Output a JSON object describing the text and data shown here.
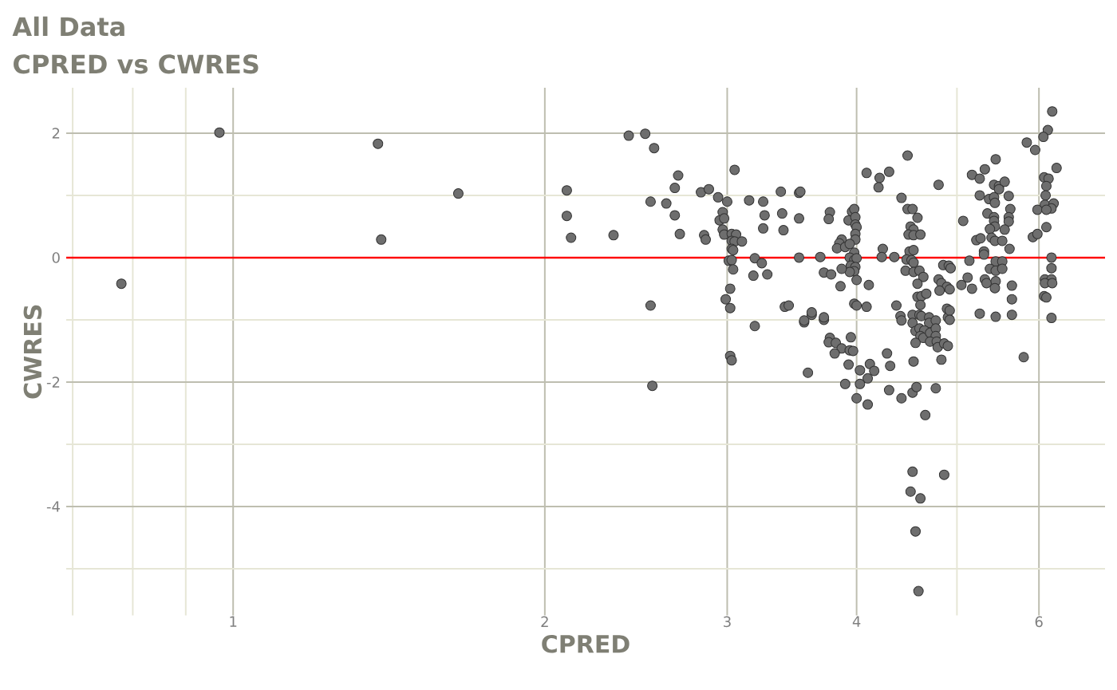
{
  "chart_data": {
    "type": "scatter",
    "title": "All Data",
    "subtitle": "CPRED vs CWRES",
    "xlabel": "CPRED",
    "ylabel": "CWRES",
    "color": "#6e6e6e",
    "marker": "circle",
    "log": "x",
    "grid": true,
    "xlim": [
      0.69,
      6.95
    ],
    "ylim": [
      -5.75,
      2.73
    ],
    "xticks": [
      {
        "value": 0.7,
        "label": null
      },
      {
        "value": 0.8,
        "label": null
      },
      {
        "value": 0.9,
        "label": null
      },
      1,
      2,
      3,
      4,
      {
        "value": 5,
        "label": null
      },
      6
    ],
    "yticks": [
      {
        "value": -5,
        "label": null
      },
      -4,
      {
        "value": -3,
        "label": null
      },
      -2,
      {
        "value": -1,
        "label": null
      },
      0,
      {
        "value": 1,
        "label": null
      },
      2
    ],
    "ref_lines": [
      {
        "axis": "y",
        "value": 0,
        "color": "#ff0000"
      }
    ],
    "x": [
      0.78,
      0.97,
      1.38,
      1.39,
      1.65,
      2.1,
      2.1,
      2.12,
      2.33,
      2.41,
      2.5,
      2.53,
      2.53,
      2.55,
      2.54,
      2.62,
      2.67,
      2.67,
      2.69,
      2.7,
      2.83,
      2.85,
      2.86,
      2.88,
      2.94,
      3.05,
      3.0,
      2.97,
      2.95,
      2.98,
      2.97,
      2.98,
      3.03,
      3.06,
      3.03,
      3.05,
      3.03,
      3.04,
      3.1,
      3.01,
      3.03,
      3.04,
      3.02,
      2.99,
      3.02,
      3.02,
      3.03,
      3.15,
      3.25,
      3.26,
      3.25,
      3.38,
      3.39,
      3.4,
      3.52,
      3.52,
      3.19,
      3.24,
      3.18,
      3.28,
      3.52,
      3.69,
      3.72,
      3.41,
      3.44,
      3.19,
      3.56,
      3.62,
      3.72,
      3.59,
      4.48,
      4.09,
      4.21,
      4.3,
      4.2,
      4.8,
      4.42,
      4.48,
      4.53,
      4.58,
      4.51,
      4.54,
      4.49,
      4.54,
      4.61,
      3.53,
      3.77,
      3.76,
      3.96,
      3.98,
      3.93,
      3.99,
      3.99,
      4.0,
      3.99,
      3.99,
      3.87,
      3.85,
      3.83,
      3.9,
      3.94,
      3.98,
      3.94,
      3.98,
      4.0,
      3.95,
      3.99,
      3.98,
      3.94,
      4.0,
      3.78,
      3.87,
      3.86,
      4.11,
      4.24,
      4.23,
      4.35,
      4.5,
      4.54,
      4.47,
      4.52,
      4.54,
      4.46,
      4.54,
      4.6,
      4.64,
      4.85,
      4.91,
      4.58,
      4.8,
      4.83,
      4.89,
      4.81,
      4.58,
      4.62,
      4.67,
      4.61,
      4.37,
      4.09,
      3.98,
      4.0,
      3.62,
      3.56,
      3.72,
      4.41,
      4.42,
      4.53,
      4.6,
      4.62,
      4.7,
      4.53,
      4.7,
      4.77,
      4.89,
      4.9,
      4.56,
      4.6,
      4.65,
      4.61,
      4.64,
      4.71,
      4.77,
      4.77,
      4.71,
      4.78,
      4.79,
      4.86,
      4.56,
      4.83,
      4.54,
      3.77,
      3.76,
      3.82,
      3.87,
      3.81,
      3.95,
      3.94,
      3.97,
      3.93,
      4.12,
      4.16,
      4.03,
      4.1,
      4.28,
      4.31,
      3.9,
      4.03,
      4.0,
      4.1,
      4.3,
      4.42,
      4.53,
      4.57,
      4.77,
      4.66,
      4.53,
      4.86,
      4.51,
      4.61,
      4.56,
      4.59,
      6.18,
      6.12,
      6.06,
      5.84,
      5.95,
      5.45,
      5.32,
      5.17,
      5.26,
      6.24,
      6.07,
      6.13,
      6.1,
      5.43,
      5.49,
      5.56,
      5.49,
      5.26,
      5.37,
      5.43,
      5.44,
      5.61,
      6.09,
      6.08,
      6.2,
      6.17,
      5.98,
      6.1,
      5.63,
      5.35,
      5.43,
      5.43,
      5.61,
      5.61,
      5.07,
      5.44,
      5.38,
      5.56,
      6.1,
      5.92,
      5.98,
      5.22,
      5.27,
      5.4,
      5.44,
      5.53,
      5.62,
      5.31,
      5.31,
      5.14,
      4.93,
      5.45,
      5.53,
      5.38,
      5.45,
      5.53,
      6.17,
      6.17,
      5.12,
      5.05,
      5.17,
      5.32,
      5.34,
      5.45,
      5.44,
      5.65,
      5.65,
      4.92,
      6.08,
      6.17,
      6.08,
      6.18,
      6.07,
      6.1,
      4.92,
      4.92,
      5.26,
      5.45,
      5.65,
      6.17,
      5.8,
      4.9
    ],
    "values": [
      -0.42,
      2.01,
      1.83,
      0.29,
      1.03,
      1.08,
      0.67,
      0.32,
      0.36,
      1.96,
      1.99,
      -0.77,
      0.9,
      1.76,
      -2.06,
      0.87,
      1.12,
      0.68,
      1.32,
      0.38,
      1.05,
      0.36,
      0.29,
      1.1,
      0.97,
      1.41,
      0.9,
      0.73,
      0.6,
      0.63,
      0.45,
      0.37,
      0.38,
      0.37,
      0.27,
      0.26,
      0.14,
      0.12,
      0.26,
      -0.05,
      -0.04,
      -0.19,
      -0.5,
      -0.67,
      -0.81,
      -1.58,
      -1.65,
      0.92,
      0.9,
      0.68,
      0.47,
      1.06,
      0.71,
      0.44,
      1.04,
      0.63,
      -0.01,
      -0.09,
      -0.29,
      -0.27,
      0.0,
      0.01,
      -0.24,
      -0.79,
      -0.77,
      -1.1,
      -1.04,
      -0.92,
      -1.0,
      -1.85,
      1.64,
      1.36,
      1.28,
      1.38,
      1.13,
      1.17,
      0.96,
      0.78,
      0.78,
      0.64,
      0.5,
      0.45,
      0.37,
      0.36,
      0.37,
      1.06,
      0.73,
      0.62,
      0.74,
      0.78,
      0.6,
      0.65,
      0.53,
      0.49,
      0.38,
      0.29,
      0.29,
      0.23,
      0.15,
      0.17,
      0.22,
      0.08,
      0.0,
      -0.04,
      -0.01,
      -0.13,
      -0.15,
      -0.22,
      -0.23,
      -0.36,
      -0.27,
      -0.18,
      -0.46,
      -0.44,
      0.14,
      0.01,
      0.01,
      0.1,
      0.12,
      -0.03,
      -0.04,
      -0.08,
      -0.21,
      -0.23,
      -0.21,
      -0.31,
      -0.12,
      -0.13,
      -0.42,
      -0.35,
      -0.41,
      -0.47,
      -0.53,
      -0.63,
      -0.62,
      -0.58,
      -0.76,
      -0.77,
      -0.79,
      -0.74,
      -0.77,
      -0.88,
      -1.01,
      -0.96,
      -0.94,
      -1.01,
      -0.92,
      -0.92,
      -0.94,
      -0.96,
      -1.05,
      -1.05,
      -1.01,
      -0.82,
      -0.96,
      -1.18,
      -1.14,
      -1.17,
      -1.26,
      -1.29,
      -1.21,
      -1.14,
      -1.26,
      -1.35,
      -1.35,
      -1.44,
      -1.38,
      -1.37,
      -1.64,
      -1.67,
      -1.29,
      -1.36,
      -1.37,
      -1.46,
      -1.54,
      -1.28,
      -1.49,
      -1.5,
      -1.72,
      -1.71,
      -1.82,
      -1.81,
      -1.94,
      -1.54,
      -1.74,
      -2.03,
      -2.03,
      -2.26,
      -2.36,
      -2.13,
      -2.26,
      -2.17,
      -2.08,
      -2.1,
      -2.53,
      -3.44,
      -3.49,
      -3.76,
      -3.87,
      -4.4,
      -5.36,
      2.35,
      2.05,
      1.94,
      1.85,
      1.73,
      1.58,
      1.42,
      1.33,
      1.27,
      1.44,
      1.29,
      1.27,
      1.15,
      1.17,
      1.15,
      1.22,
      1.1,
      1.0,
      0.94,
      0.97,
      0.88,
      0.99,
      1.0,
      0.85,
      0.87,
      0.79,
      0.77,
      0.77,
      0.78,
      0.71,
      0.65,
      0.59,
      0.65,
      0.58,
      0.59,
      0.5,
      0.46,
      0.45,
      0.49,
      0.33,
      0.38,
      0.28,
      0.31,
      0.32,
      0.27,
      0.27,
      0.14,
      0.1,
      0.05,
      -0.05,
      -0.17,
      -0.06,
      -0.06,
      -0.18,
      -0.21,
      -0.18,
      0.0,
      -0.17,
      -0.32,
      -0.44,
      -0.5,
      -0.35,
      -0.41,
      -0.38,
      -0.49,
      -0.45,
      -0.67,
      -0.51,
      -0.35,
      -0.35,
      -0.41,
      -0.41,
      -0.62,
      -0.64,
      -0.85,
      -1.0,
      -0.9,
      -0.95,
      -0.92,
      -0.97,
      -1.6,
      -1.42
    ]
  }
}
